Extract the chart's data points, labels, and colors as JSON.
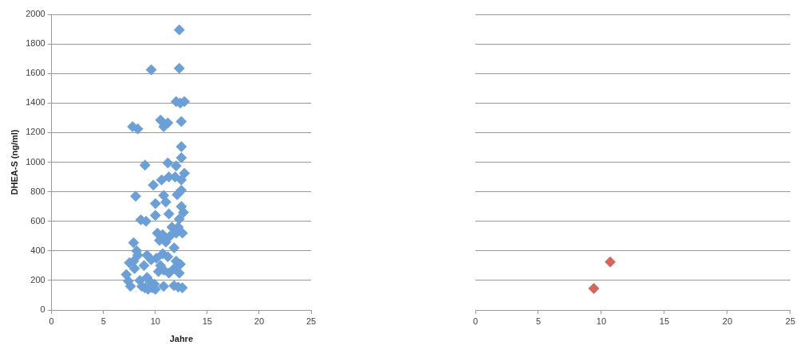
{
  "chart_data": [
    {
      "type": "scatter",
      "ylabel": "DHEA-S (ng/ml)",
      "xlabel": "Jahre",
      "xlim": [
        0,
        25
      ],
      "xticks": [
        0,
        5,
        10,
        15,
        20,
        25
      ],
      "ylim": [
        0,
        2000
      ],
      "yticks": [
        0,
        200,
        400,
        600,
        800,
        1000,
        1200,
        1400,
        1600,
        1800,
        2000
      ],
      "grid": "y",
      "marker": "diamond",
      "legend": false,
      "series": [
        {
          "color": "#6a9fd8",
          "x": [
            12.3,
            9.6,
            12.3,
            12.0,
            12.4,
            12.8,
            7.8,
            8.3,
            10.5,
            11.2,
            10.8,
            12.5,
            12.5,
            12.5,
            11.2,
            12.0,
            12.8,
            9.0,
            10.6,
            11.3,
            11.9,
            12.5,
            9.8,
            8.1,
            10.8,
            12.1,
            12.5,
            11.0,
            10.0,
            12.5,
            11.3,
            12.7,
            10.0,
            8.6,
            9.1,
            12.3,
            11.6,
            12.2,
            10.2,
            10.7,
            11.4,
            12.0,
            12.6,
            7.9,
            10.4,
            11.0,
            11.8,
            7.5,
            8.2,
            9.2,
            9.6,
            10.1,
            10.7,
            11.2,
            12.0,
            12.4,
            7.2,
            7.4,
            7.6,
            8.0,
            8.5,
            8.9,
            9.2,
            9.5,
            9.9,
            10.3,
            10.8,
            11.3,
            11.8,
            12.3,
            8.7,
            9.0,
            9.7,
            10.0,
            10.8,
            11.8,
            12.2,
            12.6,
            7.9,
            8.3,
            10.5,
            9.3
          ],
          "values": [
            1895,
            1625,
            1635,
            1410,
            1400,
            1410,
            1240,
            1225,
            1285,
            1265,
            1240,
            1275,
            1105,
            1030,
            995,
            975,
            925,
            980,
            880,
            900,
            900,
            880,
            845,
            770,
            775,
            780,
            810,
            730,
            720,
            700,
            650,
            660,
            640,
            610,
            600,
            615,
            560,
            560,
            520,
            510,
            500,
            520,
            520,
            455,
            470,
            460,
            420,
            320,
            400,
            370,
            340,
            350,
            380,
            360,
            330,
            310,
            240,
            195,
            160,
            280,
            200,
            300,
            220,
            190,
            175,
            260,
            270,
            250,
            280,
            250,
            160,
            150,
            150,
            140,
            160,
            165,
            155,
            150,
            330,
            370,
            300,
            140
          ]
        }
      ]
    },
    {
      "type": "scatter",
      "xlim": [
        0,
        25
      ],
      "xticks": [
        0,
        5,
        10,
        15,
        20,
        25
      ],
      "ylim": [
        0,
        2000
      ],
      "yticks": [
        0,
        200,
        400,
        600,
        800,
        1000,
        1200,
        1400,
        1600,
        1800,
        2000
      ],
      "grid": "y",
      "marker": "diamond",
      "legend": false,
      "tick_labels": "x",
      "series": [
        {
          "color": "#d8655c",
          "x": [
            9.4,
            10.7
          ],
          "values": [
            145,
            325
          ]
        }
      ]
    }
  ]
}
